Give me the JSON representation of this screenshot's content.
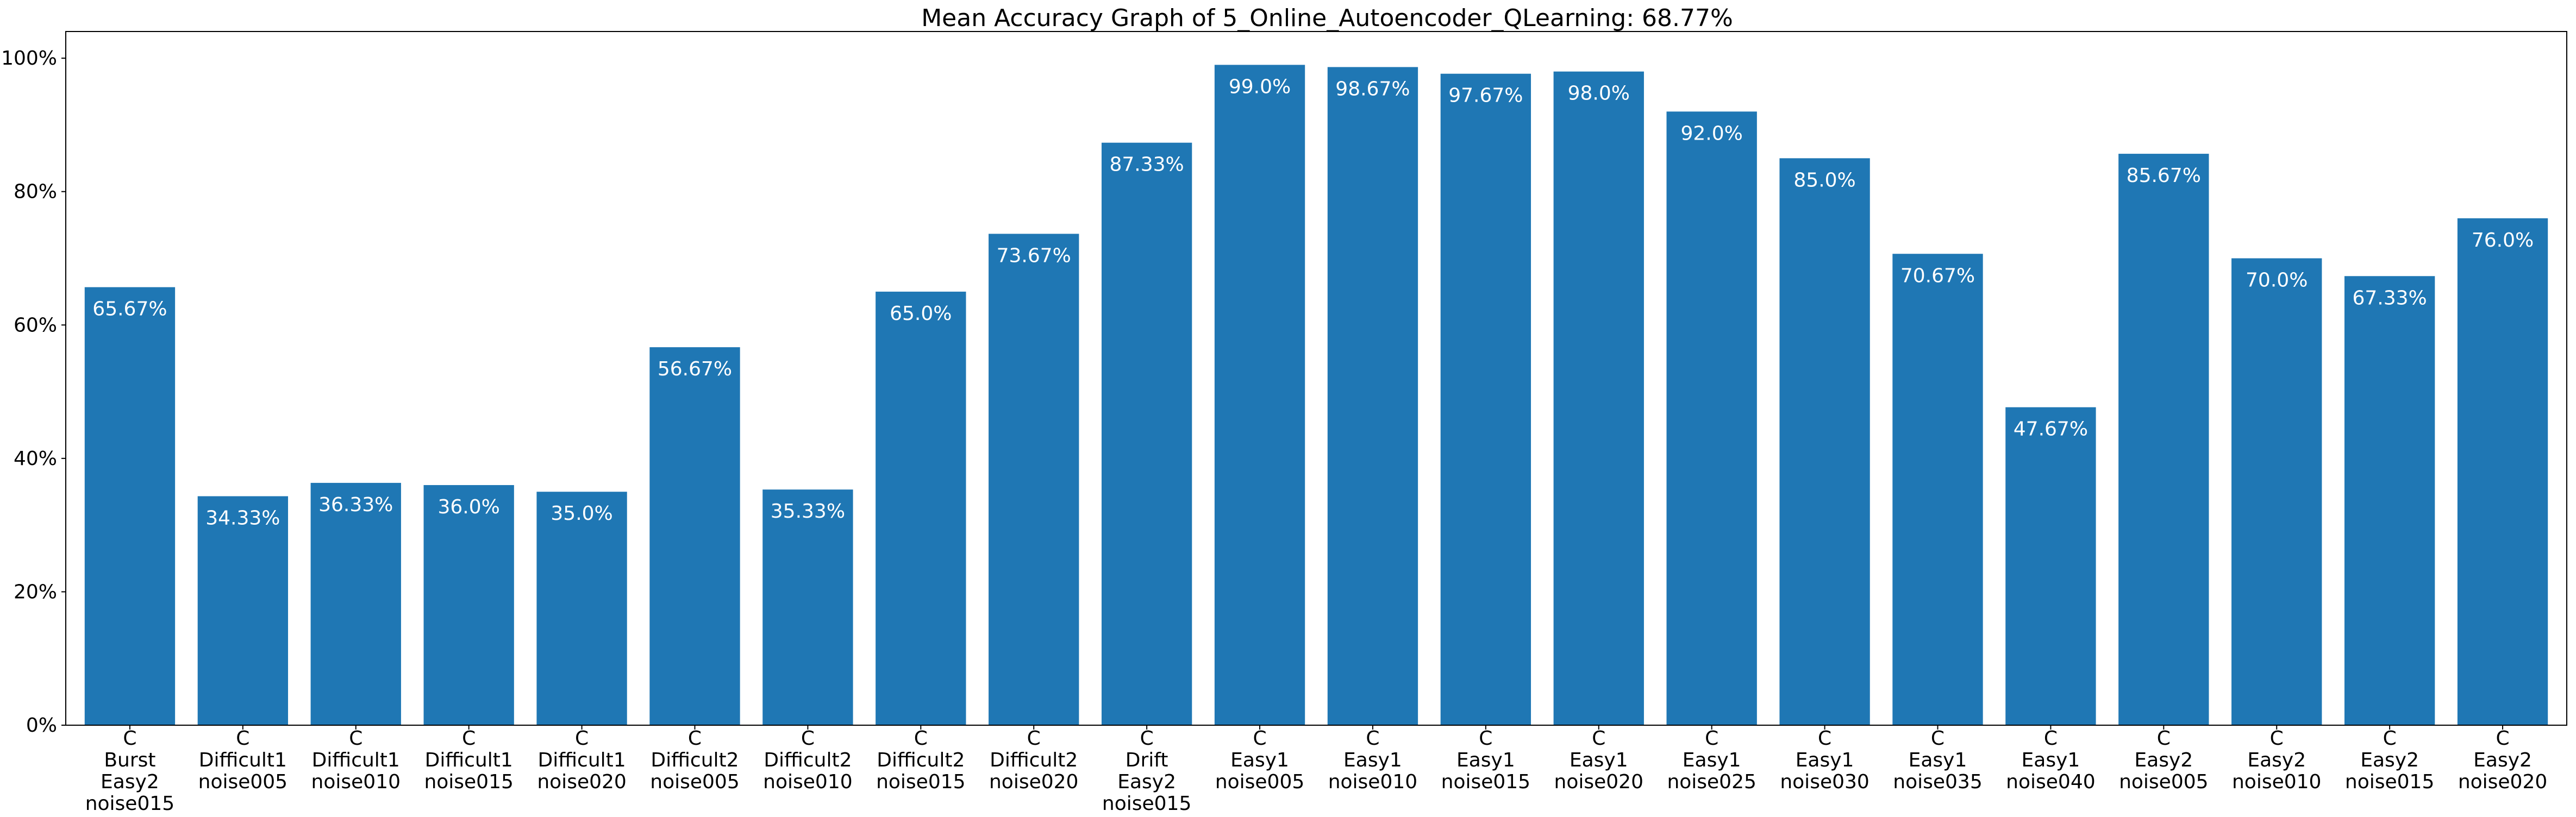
{
  "chart_data": {
    "type": "bar",
    "title": "Mean Accuracy Graph of 5_Online_Autoencoder_QLearning: 68.77%",
    "xlabel": "",
    "ylabel": "",
    "ylim": [
      0,
      104
    ],
    "yticks": [
      0,
      20,
      40,
      60,
      80,
      100
    ],
    "ytick_labels": [
      "0%",
      "20%",
      "40%",
      "60%",
      "80%",
      "100%"
    ],
    "grid": false,
    "bar_color": "#1f77b4",
    "categories": [
      [
        "C",
        "Burst",
        "Easy2",
        "noise015"
      ],
      [
        "C",
        "Difficult1",
        "noise005"
      ],
      [
        "C",
        "Difficult1",
        "noise010"
      ],
      [
        "C",
        "Difficult1",
        "noise015"
      ],
      [
        "C",
        "Difficult1",
        "noise020"
      ],
      [
        "C",
        "Difficult2",
        "noise005"
      ],
      [
        "C",
        "Difficult2",
        "noise010"
      ],
      [
        "C",
        "Difficult2",
        "noise015"
      ],
      [
        "C",
        "Difficult2",
        "noise020"
      ],
      [
        "C",
        "Drift",
        "Easy2",
        "noise015"
      ],
      [
        "C",
        "Easy1",
        "noise005"
      ],
      [
        "C",
        "Easy1",
        "noise010"
      ],
      [
        "C",
        "Easy1",
        "noise015"
      ],
      [
        "C",
        "Easy1",
        "noise020"
      ],
      [
        "C",
        "Easy1",
        "noise025"
      ],
      [
        "C",
        "Easy1",
        "noise030"
      ],
      [
        "C",
        "Easy1",
        "noise035"
      ],
      [
        "C",
        "Easy1",
        "noise040"
      ],
      [
        "C",
        "Easy2",
        "noise005"
      ],
      [
        "C",
        "Easy2",
        "noise010"
      ],
      [
        "C",
        "Easy2",
        "noise015"
      ],
      [
        "C",
        "Easy2",
        "noise020"
      ]
    ],
    "values": [
      65.67,
      34.33,
      36.33,
      36.0,
      35.0,
      56.67,
      35.33,
      65.0,
      73.67,
      87.33,
      99.0,
      98.67,
      97.67,
      98.0,
      92.0,
      85.0,
      70.67,
      47.67,
      85.67,
      70.0,
      67.33,
      76.0
    ],
    "data_labels": [
      "65.67%",
      "34.33%",
      "36.33%",
      "36.0%",
      "35.0%",
      "56.67%",
      "35.33%",
      "65.0%",
      "73.67%",
      "87.33%",
      "99.0%",
      "98.67%",
      "97.67%",
      "98.0%",
      "92.0%",
      "85.0%",
      "70.67%",
      "47.67%",
      "85.67%",
      "70.0%",
      "67.33%",
      "76.0%"
    ]
  }
}
